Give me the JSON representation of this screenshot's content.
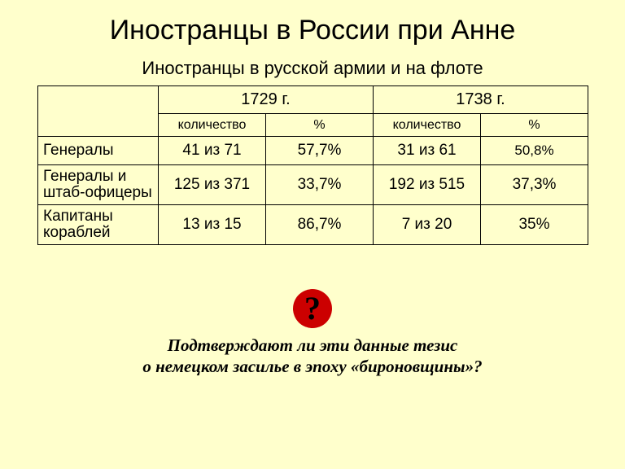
{
  "title": "Иностранцы в России при Анне",
  "subtitle": "Иностранцы в русской армии и на флоте",
  "table": {
    "year_left": "1729 г.",
    "year_right": "1738 г.",
    "sub_qty_left": "количество",
    "sub_pct_left": "%",
    "sub_qty_right": "количество",
    "sub_pct_right": "%",
    "rows": [
      {
        "label": "Генералы",
        "q1": "41 из 71",
        "p1": "57,7%",
        "q2": "31 из 61",
        "p2": "50,8%",
        "p2_small": true
      },
      {
        "label": "Генералы и штаб-офицеры",
        "q1": "125 из 371",
        "p1": "33,7%",
        "q2": "192 из 515",
        "p2": "37,3%"
      },
      {
        "label": "Капитаны кораблей",
        "q1": "13 из 15",
        "p1": "86,7%",
        "q2": "7 из 20",
        "p2": "35%"
      }
    ]
  },
  "question_mark": "?",
  "question_line1": "Подтверждают ли эти данные тезис",
  "question_line2": "о немецком засилье в эпоху «бироновщины»?",
  "colors": {
    "background": "#ffffcc",
    "text": "#000000",
    "border": "#000000",
    "qmark_bg": "#cc0000"
  }
}
